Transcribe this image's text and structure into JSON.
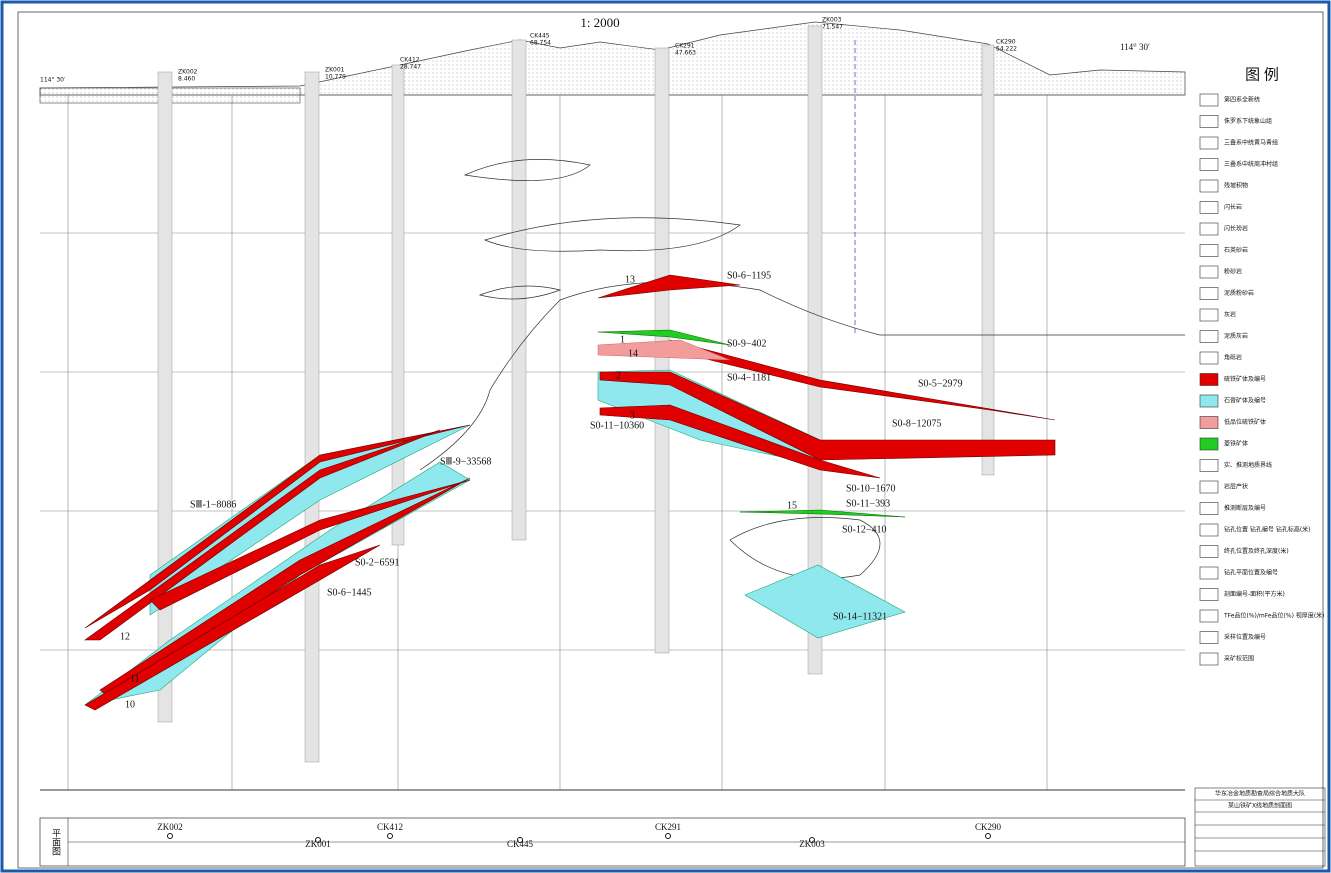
{
  "header": {
    "scale": "1: 2000",
    "coord_left": "114° 30′",
    "coord_right": "114° 30′"
  },
  "boreholes": [
    {
      "name": "ZK002",
      "elevation": "8.460"
    },
    {
      "name": "ZK001",
      "elevation": "10.779"
    },
    {
      "name": "CK412",
      "elevation": "28.747"
    },
    {
      "name": "CK445",
      "elevation": "68.754"
    },
    {
      "name": "CK291",
      "elevation": "47.663"
    },
    {
      "name": "ZK003",
      "elevation": "71.547"
    },
    {
      "name": "CK290",
      "elevation": "54.222"
    }
  ],
  "ore_labels": [
    "SⅢ-1−8086",
    "SⅢ-9−33568",
    "S0-2−6591",
    "S0-6−1445",
    "S0-6−1195",
    "S0-9−402",
    "S0-4−1181",
    "S0-11−10360",
    "S0-5−2979",
    "S0-8−12075",
    "S0-10−1670",
    "S0-11−393",
    "S0-12−410",
    "S0-14−11321"
  ],
  "ore_numbers": [
    "13",
    "1",
    "14",
    "2",
    "3",
    "12",
    "11",
    "10",
    "15"
  ],
  "legend": {
    "title": "图  例",
    "items": [
      "第四系全新统",
      "侏罗系下统象山组",
      "三叠系中统黄马青组",
      "三叠系中统周冲村组",
      "残坡积物",
      "闪长岩",
      "闪长玢岩",
      "石英砂岩",
      "粉砂岩",
      "泥质粉砂岩",
      "灰岩",
      "泥质灰岩",
      "角砾岩",
      "硫铁矿体及编号",
      "石膏矿体及编号",
      "低品位硫铁矿体",
      "菱铁矿体",
      "实、推测地质界线",
      "岩层产状",
      "推测断层及编号",
      "钻孔位置 钻孔编号 钻孔标高(米)",
      "终孔位置及终孔深度(米)",
      "钻孔平面位置及编号",
      "剖面编号-面积(平方米)",
      "TFe品位(%)/mFe品位(%) 视厚度(米)",
      "采样位置及编号",
      "采矿权范围"
    ]
  },
  "plan": {
    "label": "平面图",
    "holes": [
      "ZK002",
      "ZK001",
      "CK412",
      "CK445",
      "CK291",
      "ZK003",
      "CK290"
    ]
  },
  "title_block": {
    "org": "华东冶金地质勘查局综合地质大队",
    "title": "某山铁矿X线地质剖面图"
  }
}
